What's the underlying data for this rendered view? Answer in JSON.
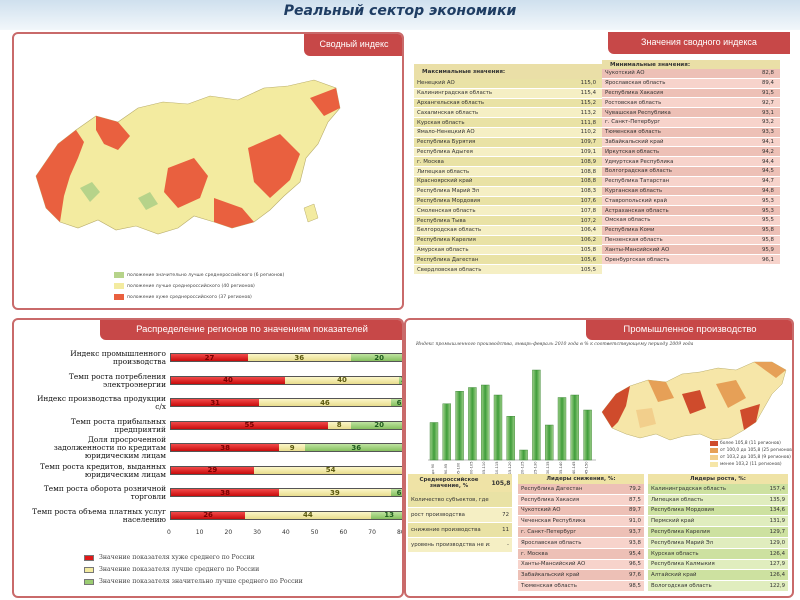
{
  "header": {
    "title": "Реальный сектор экономики"
  },
  "index_panel": {
    "title": "Сводный индекс",
    "side_title": "Значения сводного индекса",
    "max_title": "Максимальные значения:",
    "max_rows": [
      {
        "name": "Ненецкий АО",
        "value": "115,0"
      },
      {
        "name": "Калининградская область",
        "value": "115,4"
      },
      {
        "name": "Архангельская область",
        "value": "115,2"
      },
      {
        "name": "Сахалинская область",
        "value": "113,2"
      },
      {
        "name": "Курская область",
        "value": "111,8"
      },
      {
        "name": "Ямало-Ненецкий АО",
        "value": "110,2"
      },
      {
        "name": "Республика Бурятия",
        "value": "109,7"
      },
      {
        "name": "Республика Адыгея",
        "value": "109,1"
      },
      {
        "name": "г. Москва",
        "value": "108,9"
      },
      {
        "name": "Липецкая область",
        "value": "108,8"
      },
      {
        "name": "Красноярский край",
        "value": "108,8"
      },
      {
        "name": "Республика Марий Эл",
        "value": "108,3"
      },
      {
        "name": "Республика Мордовия",
        "value": "107,6"
      },
      {
        "name": "Смоленская область",
        "value": "107,8"
      },
      {
        "name": "Республика Тыва",
        "value": "107,2"
      },
      {
        "name": "Белгородская область",
        "value": "106,4"
      },
      {
        "name": "Республика Карелия",
        "value": "106,2"
      },
      {
        "name": "Амурская область",
        "value": "105,8"
      },
      {
        "name": "Республика Дагестан",
        "value": "105,6"
      },
      {
        "name": "Свердловская область",
        "value": "105,5"
      }
    ],
    "min_title": "Минимальные значения:",
    "min_rows": [
      {
        "name": "Чукотский АО",
        "value": "82,8"
      },
      {
        "name": "Ярославская область",
        "value": "89,4"
      },
      {
        "name": "Республика Хакасия",
        "value": "91,5"
      },
      {
        "name": "Ростовская область",
        "value": "92,7"
      },
      {
        "name": "Чувашская Республика",
        "value": "93,1"
      },
      {
        "name": "г. Санкт-Петербург",
        "value": "93,2"
      },
      {
        "name": "Тюменская область",
        "value": "93,3"
      },
      {
        "name": "Забайкальский край",
        "value": "94,1"
      },
      {
        "name": "Иркутская область",
        "value": "94,2"
      },
      {
        "name": "Удмуртская Республика",
        "value": "94,4"
      },
      {
        "name": "Волгоградская область",
        "value": "94,5"
      },
      {
        "name": "Республика Татарстан",
        "value": "94,7"
      },
      {
        "name": "Курганская область",
        "value": "94,8"
      },
      {
        "name": "Ставропольский край",
        "value": "95,3"
      },
      {
        "name": "Астраханская область",
        "value": "95,3"
      },
      {
        "name": "Омская область",
        "value": "95,5"
      },
      {
        "name": "Республика Коми",
        "value": "95,8"
      },
      {
        "name": "Пензенская область",
        "value": "95,8"
      },
      {
        "name": "Ханты-Мансийский АО",
        "value": "95,9"
      },
      {
        "name": "Оренбургская область",
        "value": "96,1"
      }
    ],
    "legend": [
      {
        "text": "положение значительно лучше среднероссийского (6 регионов)",
        "color": "#b6d38a"
      },
      {
        "text": "положение лучше среднероссийского (40 регионов)",
        "color": "#f3eba0"
      },
      {
        "text": "положение хуже среднероссийского (37 регионов)",
        "color": "#e9603f"
      }
    ],
    "map_colors": {
      "better": "#f3eba0",
      "worse": "#e9603f",
      "much_better": "#b6d38a"
    }
  },
  "distribution_panel": {
    "title": "Распределение регионов по значениям показателей",
    "chart_data": {
      "type": "bar",
      "orientation": "horizontal",
      "stacked": true,
      "categories": [
        "Индекс промышленного производства",
        "Темп роста потребления электроэнергии",
        "Индекс производства продукции с/х",
        "Темп роста прибыльных предприятий",
        "Доля просроченной задолженности по кредитам юридическим лицам",
        "Темп роста кредитов, выданных юридическим лицам",
        "Темп роста оборота розничной торговли",
        "Темп роста объема платных услуг населению"
      ],
      "series": [
        {
          "name": "Значение показателя хуже среднего по России",
          "color": "#e01818",
          "values": [
            27,
            40,
            31,
            55,
            38,
            29,
            38,
            26
          ]
        },
        {
          "name": "Значение показателя лучше среднего по России",
          "color": "#f3eba0",
          "values": [
            36,
            40,
            46,
            8,
            9,
            54,
            39,
            44
          ]
        },
        {
          "name": "Значение показателя значительно лучше среднего по России",
          "color": "#9bcc72",
          "values": [
            20,
            3,
            6,
            20,
            36,
            0,
            6,
            13
          ]
        }
      ],
      "bar_labels": [
        [
          "27",
          "36",
          "20"
        ],
        [
          "40",
          "40",
          "3"
        ],
        [
          "31",
          "46",
          "6"
        ],
        [
          "55",
          "8",
          "20"
        ],
        [
          "38",
          "9",
          "36"
        ],
        [
          "29",
          "54",
          ""
        ],
        [
          "38",
          "39",
          "6"
        ],
        [
          "26",
          "44",
          "13"
        ]
      ],
      "xlim": [
        0,
        80
      ],
      "xticks": [
        "0",
        "10",
        "20",
        "30",
        "40",
        "50",
        "60",
        "70",
        "80"
      ],
      "legend_position": "bottom"
    }
  },
  "industry_panel": {
    "title": "Промышленное производство",
    "chart_subtitle": "Индекс промышленного производства, январь-февраль 2010 года в % к соответствующему периоду 2009 года",
    "chart_data": {
      "type": "bar",
      "values": [
        30,
        45,
        55,
        58,
        60,
        52,
        35,
        8,
        72,
        28,
        50,
        52,
        40
      ],
      "x": [
        "до 90",
        "90-95",
        "95-100",
        "100-105",
        "105-110",
        "110-115",
        "115-120",
        "120-125",
        "125-130",
        "130-135",
        "135-140",
        "140-145",
        "145-150"
      ],
      "value_labels": [
        "",
        "",
        "",
        "",
        "",
        "",
        "",
        "",
        "",
        "",
        "",
        "",
        ""
      ]
    },
    "map_legend": [
      {
        "text": "более 105,8 (11 регионов)",
        "color": "#cf4b2c"
      },
      {
        "text": "от 100,0 до 105,8 (25 регионов)",
        "color": "#e6a057"
      },
      {
        "text": "от 103,2 до 105,8 (9 регионов)",
        "color": "#f2cf8c"
      },
      {
        "text": "менее 103,2 (11 регионов)",
        "color": "#f6e6a8"
      }
    ],
    "avg_table": {
      "header": "Среднероссийское значение, %",
      "header_value": "105,8",
      "rows": [
        {
          "name": "Количество субъектов, где наблюдалось:",
          "value": ""
        },
        {
          "name": "рост производства",
          "value": "72"
        },
        {
          "name": "снижение производства",
          "value": "11"
        },
        {
          "name": "уровень производства не изменился",
          "value": "-"
        }
      ]
    },
    "leaders_down": {
      "header": "Лидеры снижения, %:",
      "rows": [
        {
          "name": "Республика Дагестан",
          "value": "79,2"
        },
        {
          "name": "Республика Хакасия",
          "value": "87,5"
        },
        {
          "name": "Чукотский АО",
          "value": "89,7"
        },
        {
          "name": "Чеченская Республика",
          "value": "91,0"
        },
        {
          "name": "г. Санкт-Петербург",
          "value": "93,7"
        },
        {
          "name": "Ярославская область",
          "value": "93,8"
        },
        {
          "name": "г. Москва",
          "value": "95,4"
        },
        {
          "name": "Ханты-Мансийский АО",
          "value": "96,5"
        },
        {
          "name": "Забайкальский край",
          "value": "97,6"
        },
        {
          "name": "Тюменская область",
          "value": "98,5"
        }
      ]
    },
    "leaders_up": {
      "header": "Лидеры роста, %:",
      "rows": [
        {
          "name": "Калининградская область",
          "value": "157,4"
        },
        {
          "name": "Липецкая область",
          "value": "135,9"
        },
        {
          "name": "Республика Мордовия",
          "value": "134,6"
        },
        {
          "name": "Пермский край",
          "value": "131,9"
        },
        {
          "name": "Республика Карелия",
          "value": "129,7"
        },
        {
          "name": "Республика Марий Эл",
          "value": "129,0"
        },
        {
          "name": "Курская область",
          "value": "126,4"
        },
        {
          "name": "Республика Калмыкия",
          "value": "127,9"
        },
        {
          "name": "Алтайский край",
          "value": "126,4"
        },
        {
          "name": "Вологодская область",
          "value": "122,9"
        }
      ]
    }
  }
}
